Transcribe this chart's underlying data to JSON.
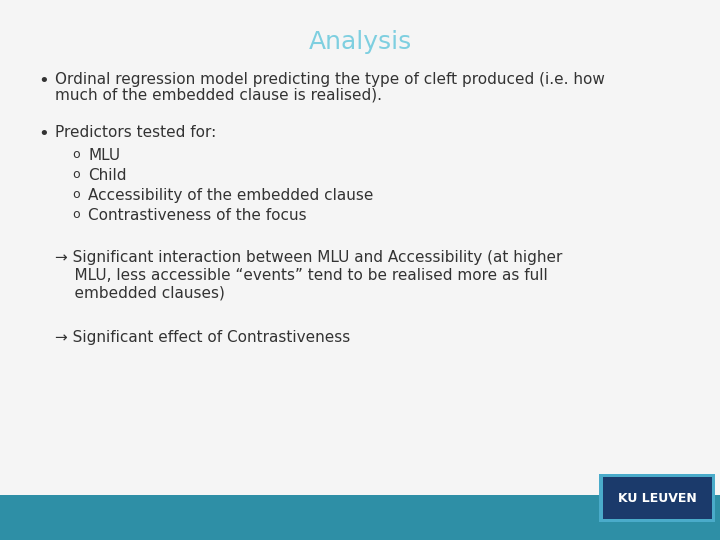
{
  "title": "Analysis",
  "title_color": "#7ECFE0",
  "title_fontsize": 18,
  "background_color": "#F5F5F5",
  "bottom_bar_color": "#2E8FA6",
  "ku_leuven_box_color": "#1B3A6B",
  "ku_leuven_border_color": "#4AABCA",
  "ku_leuven_text": "KU LEUVEN",
  "ku_leuven_text_color": "#FFFFFF",
  "text_color": "#333333",
  "bullet1_line1": "Ordinal regression model predicting the type of cleft produced (i.e. how",
  "bullet1_line2": "much of the embedded clause is realised).",
  "bullet2": "Predictors tested for:",
  "sub_bullets": [
    "MLU",
    "Child",
    "Accessibility of the embedded clause",
    "Contrastiveness of the focus"
  ],
  "arrow1_line1": "→ Significant interaction between MLU and Accessibility (at higher",
  "arrow1_line2": "    MLU, less accessible “events” tend to be realised more as full",
  "arrow1_line3": "    embedded clauses)",
  "arrow2": "→ Significant effect of Contrastiveness",
  "body_fontsize": 11,
  "sub_fontsize": 11
}
